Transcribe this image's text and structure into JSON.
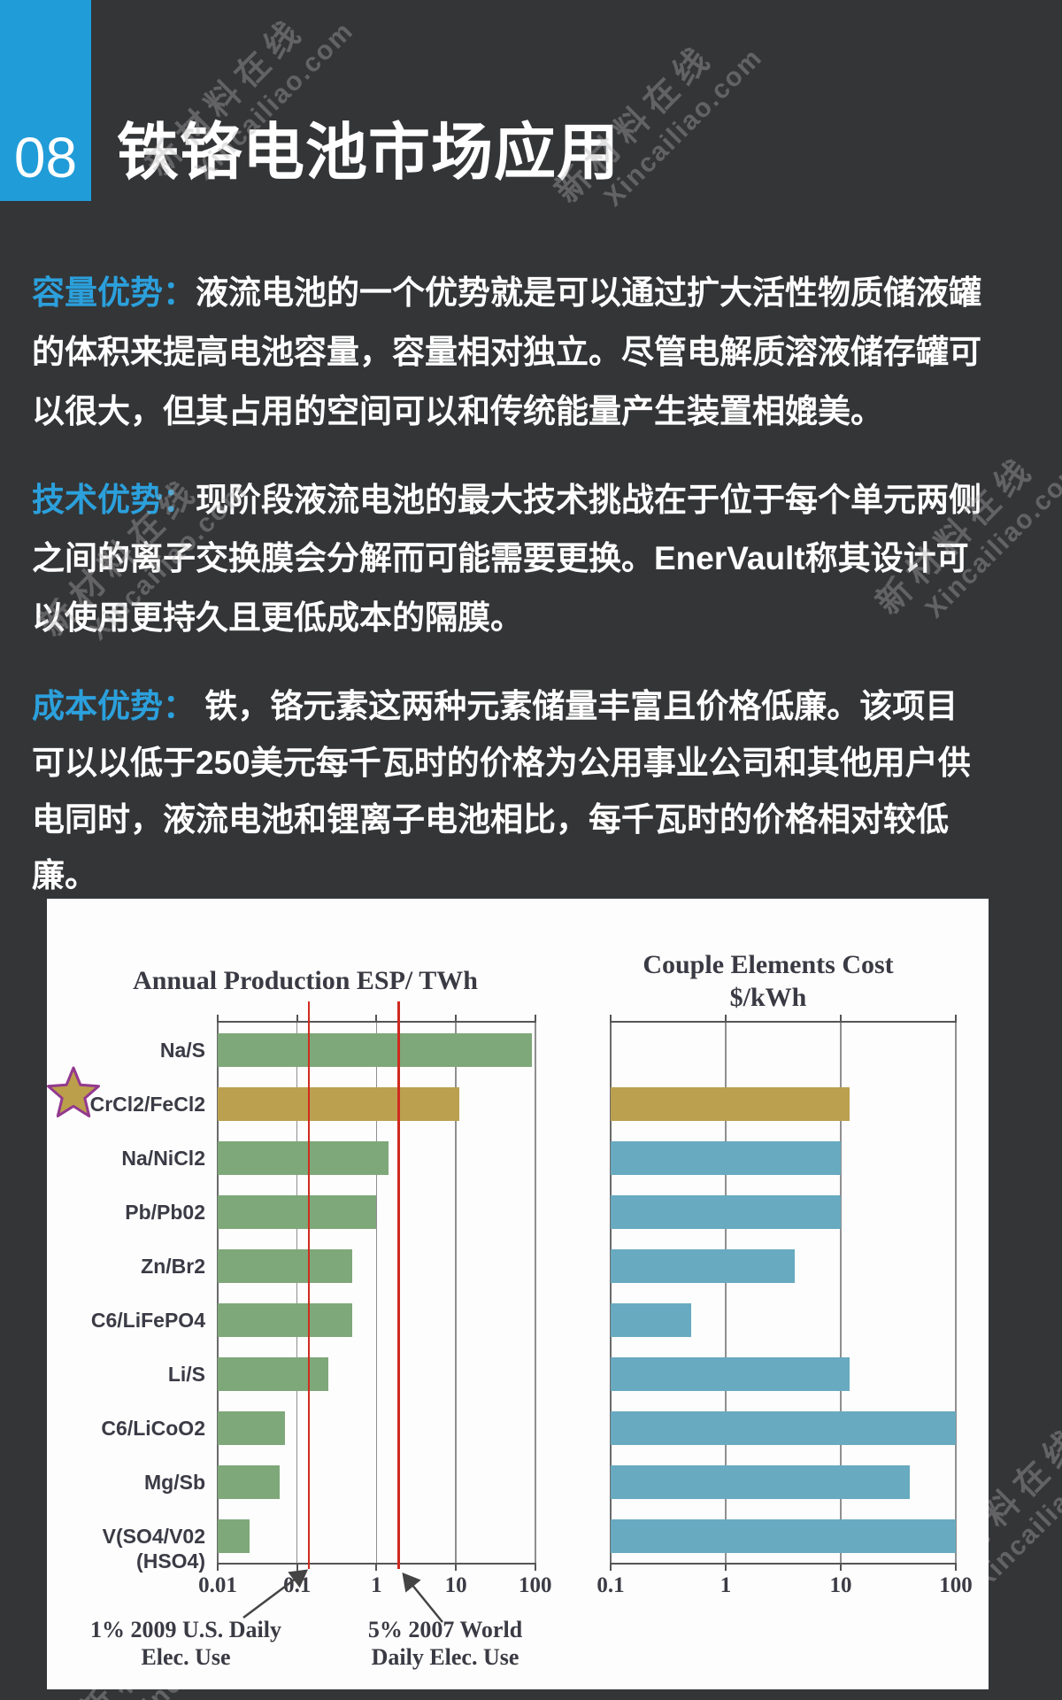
{
  "header": {
    "number": "08",
    "title": "铁铬电池市场应用"
  },
  "colors": {
    "background": "#343537",
    "accent_box": "#209CD8",
    "lead_text": "#2BA0DC",
    "body_text": "#FFFFFF",
    "chart_text": "#3A3A44",
    "reference_line": "#D02B20"
  },
  "paragraphs": [
    {
      "lead": "容量优势：",
      "lines": [
        "液流电池的一个优势就是可以通过扩大活性物质储液罐",
        "的体积来提高电池容量，容量相对独立。尽管电解质溶液储存罐可",
        "以很大，但其占用的空间可以和传统能量产生装置相媲美。"
      ]
    },
    {
      "lead": "技术优势：",
      "lines": [
        "现阶段液流电池的最大技术挑战在于位于每个单元两侧",
        "之间的离子交换膜会分解而可能需要更换。EnerVault称其设计可",
        "以使用更持久且更低成本的隔膜。"
      ]
    },
    {
      "lead": "成本优势：",
      "lines": [
        " 铁，铬元素这两种元素储量丰富且价格低廉。该项目",
        "可以以低于250美元每千瓦时的价格为公用事业公司和其他用户供",
        "电同时，液流电池和锂离子电池相比，每千瓦时的价格相对较低",
        "廉。"
      ]
    }
  ],
  "watermark": {
    "cn": "新材料在线",
    "en": "Xincailiao.com"
  },
  "chart_data": [
    {
      "type": "bar",
      "orientation": "horizontal",
      "xscale": "log",
      "title": "Annual Production ESP/ TWh",
      "categories": [
        "Na/S",
        "CrCl2/FeCl2",
        "Na/NiCl2",
        "Pb/Pb02",
        "Zn/Br2",
        "C6/LiFePO4",
        "Li/S",
        "C6/LiCoO2",
        "Mg/Sb",
        "V(SO4/V02 (HSO4)"
      ],
      "values": [
        90,
        11,
        1.4,
        1,
        0.5,
        0.5,
        0.25,
        0.07,
        0.06,
        0.025
      ],
      "xlim": [
        0.01,
        100
      ],
      "xticks": [
        "0.01",
        "0.1",
        "1",
        "10",
        "100"
      ],
      "grid": "vertical-decades",
      "bar_color": "#7EA879",
      "highlight_index": 1,
      "highlight_color": "#BBA050",
      "highlight_marker": {
        "shape": "star",
        "fill": "#BC9F4A",
        "stroke": "#93398F"
      },
      "annotations": [
        {
          "line1": "1% 2009 U.S. Daily",
          "line2": "Elec. Use",
          "x": 0.14,
          "color": "#D02B20"
        },
        {
          "line1": "5% 2007 World",
          "line2": "Daily Elec. Use",
          "x": 1.9,
          "color": "#D02B20"
        }
      ]
    },
    {
      "type": "bar",
      "orientation": "horizontal",
      "xscale": "log",
      "title": "Couple Elements Cost $/kWh",
      "title_lines": [
        "Couple Elements Cost",
        "$/kWh"
      ],
      "categories": [
        "Na/S",
        "CrCl2/FeCl2",
        "Na/NiCl2",
        "Pb/Pb02",
        "Zn/Br2",
        "C6/LiFePO4",
        "Li/S",
        "C6/LiCoO2",
        "Mg/Sb",
        "V(SO4/V02 (HSO4)"
      ],
      "values": [
        null,
        12,
        10,
        10,
        4,
        0.5,
        12,
        100,
        40,
        100
      ],
      "xlim": [
        0.1,
        100
      ],
      "xticks": [
        "0.1",
        "1",
        "10",
        "100"
      ],
      "grid": "vertical-decades",
      "bar_color": "#68AAC0",
      "highlight_index": 1,
      "highlight_color": "#BBA050"
    }
  ]
}
